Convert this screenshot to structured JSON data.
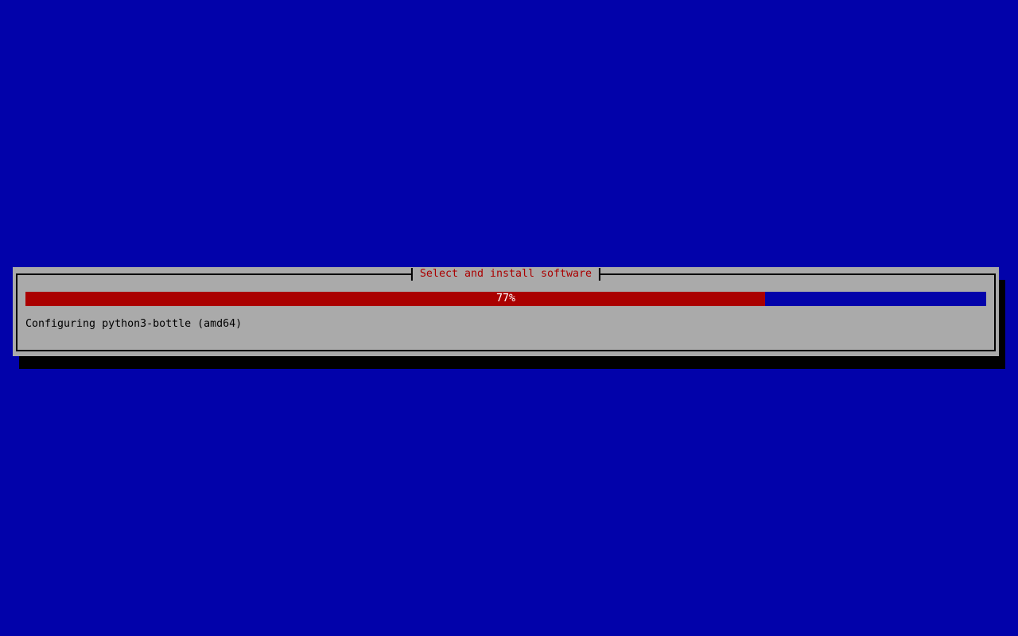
{
  "screen": {
    "background_color": "#0202AA"
  },
  "dialog": {
    "title": "Select and install software",
    "title_color": "#AA0000",
    "background_color": "#AAAAAA",
    "border_color": "#000000",
    "shadow_color": "#000000",
    "progress": {
      "percent": 77,
      "label": "77%",
      "fill_color": "#AA0000",
      "empty_color": "#0202AA",
      "label_color": "#FFFFFF"
    },
    "status_text": "Configuring python3-bottle (amd64)"
  }
}
